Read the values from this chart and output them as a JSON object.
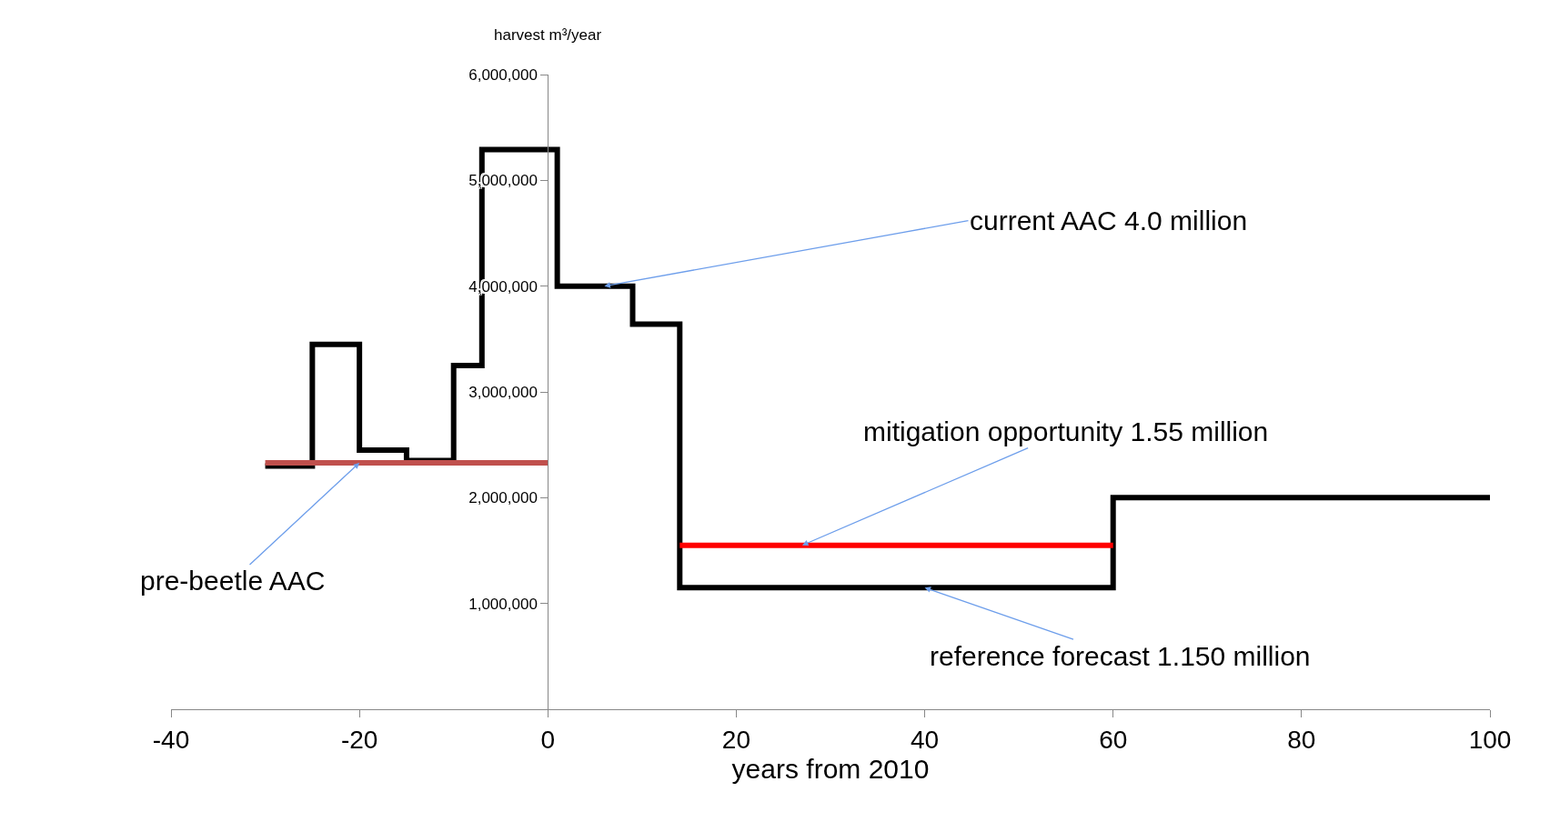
{
  "chart_data": {
    "type": "step",
    "xlabel": "years from 2010",
    "ylabel": "harvest m³/year",
    "xlim": [
      -40,
      100
    ],
    "xticks": [
      -40,
      -20,
      0,
      20,
      40,
      60,
      80,
      100
    ],
    "ylim": [
      0,
      6000000
    ],
    "yticks": [
      {
        "value": 1000000,
        "label": "1,000,000"
      },
      {
        "value": 2000000,
        "label": "2,000,000"
      },
      {
        "value": 3000000,
        "label": "3,000,000"
      },
      {
        "value": 4000000,
        "label": "4,000,000"
      },
      {
        "value": 5000000,
        "label": "5,000,000"
      },
      {
        "value": 6000000,
        "label": "6,000,000"
      }
    ],
    "grid": false,
    "marker": "none",
    "line_style": "solid",
    "series": [
      {
        "color": "#000000",
        "x": [
          -30,
          -25,
          -20,
          -15,
          -10,
          -7,
          1,
          9,
          14,
          60,
          100
        ],
        "values": [
          2300000,
          3450000,
          2450000,
          2350000,
          3250000,
          5290000,
          4000000,
          3640000,
          1150000,
          2000000,
          2000000
        ]
      },
      {
        "type": "line",
        "color": "#c0504d",
        "x": [
          -30,
          0
        ],
        "values": [
          2330000,
          2330000
        ]
      },
      {
        "type": "line",
        "color": "#ff0000",
        "x": [
          14,
          60
        ],
        "values": [
          1550000,
          1550000
        ]
      }
    ],
    "annotations": [
      {
        "text": "current AAC 4.0 million",
        "x": 6,
        "y": 4000000
      },
      {
        "text": "mitigation opportunity 1.55 million",
        "x": 27,
        "y": 1550000
      },
      {
        "text": "reference forecast 1.150 million",
        "x": 40,
        "y": 1150000
      },
      {
        "text": "pre-beetle AAC",
        "x": -20,
        "y": 2330000
      }
    ]
  }
}
